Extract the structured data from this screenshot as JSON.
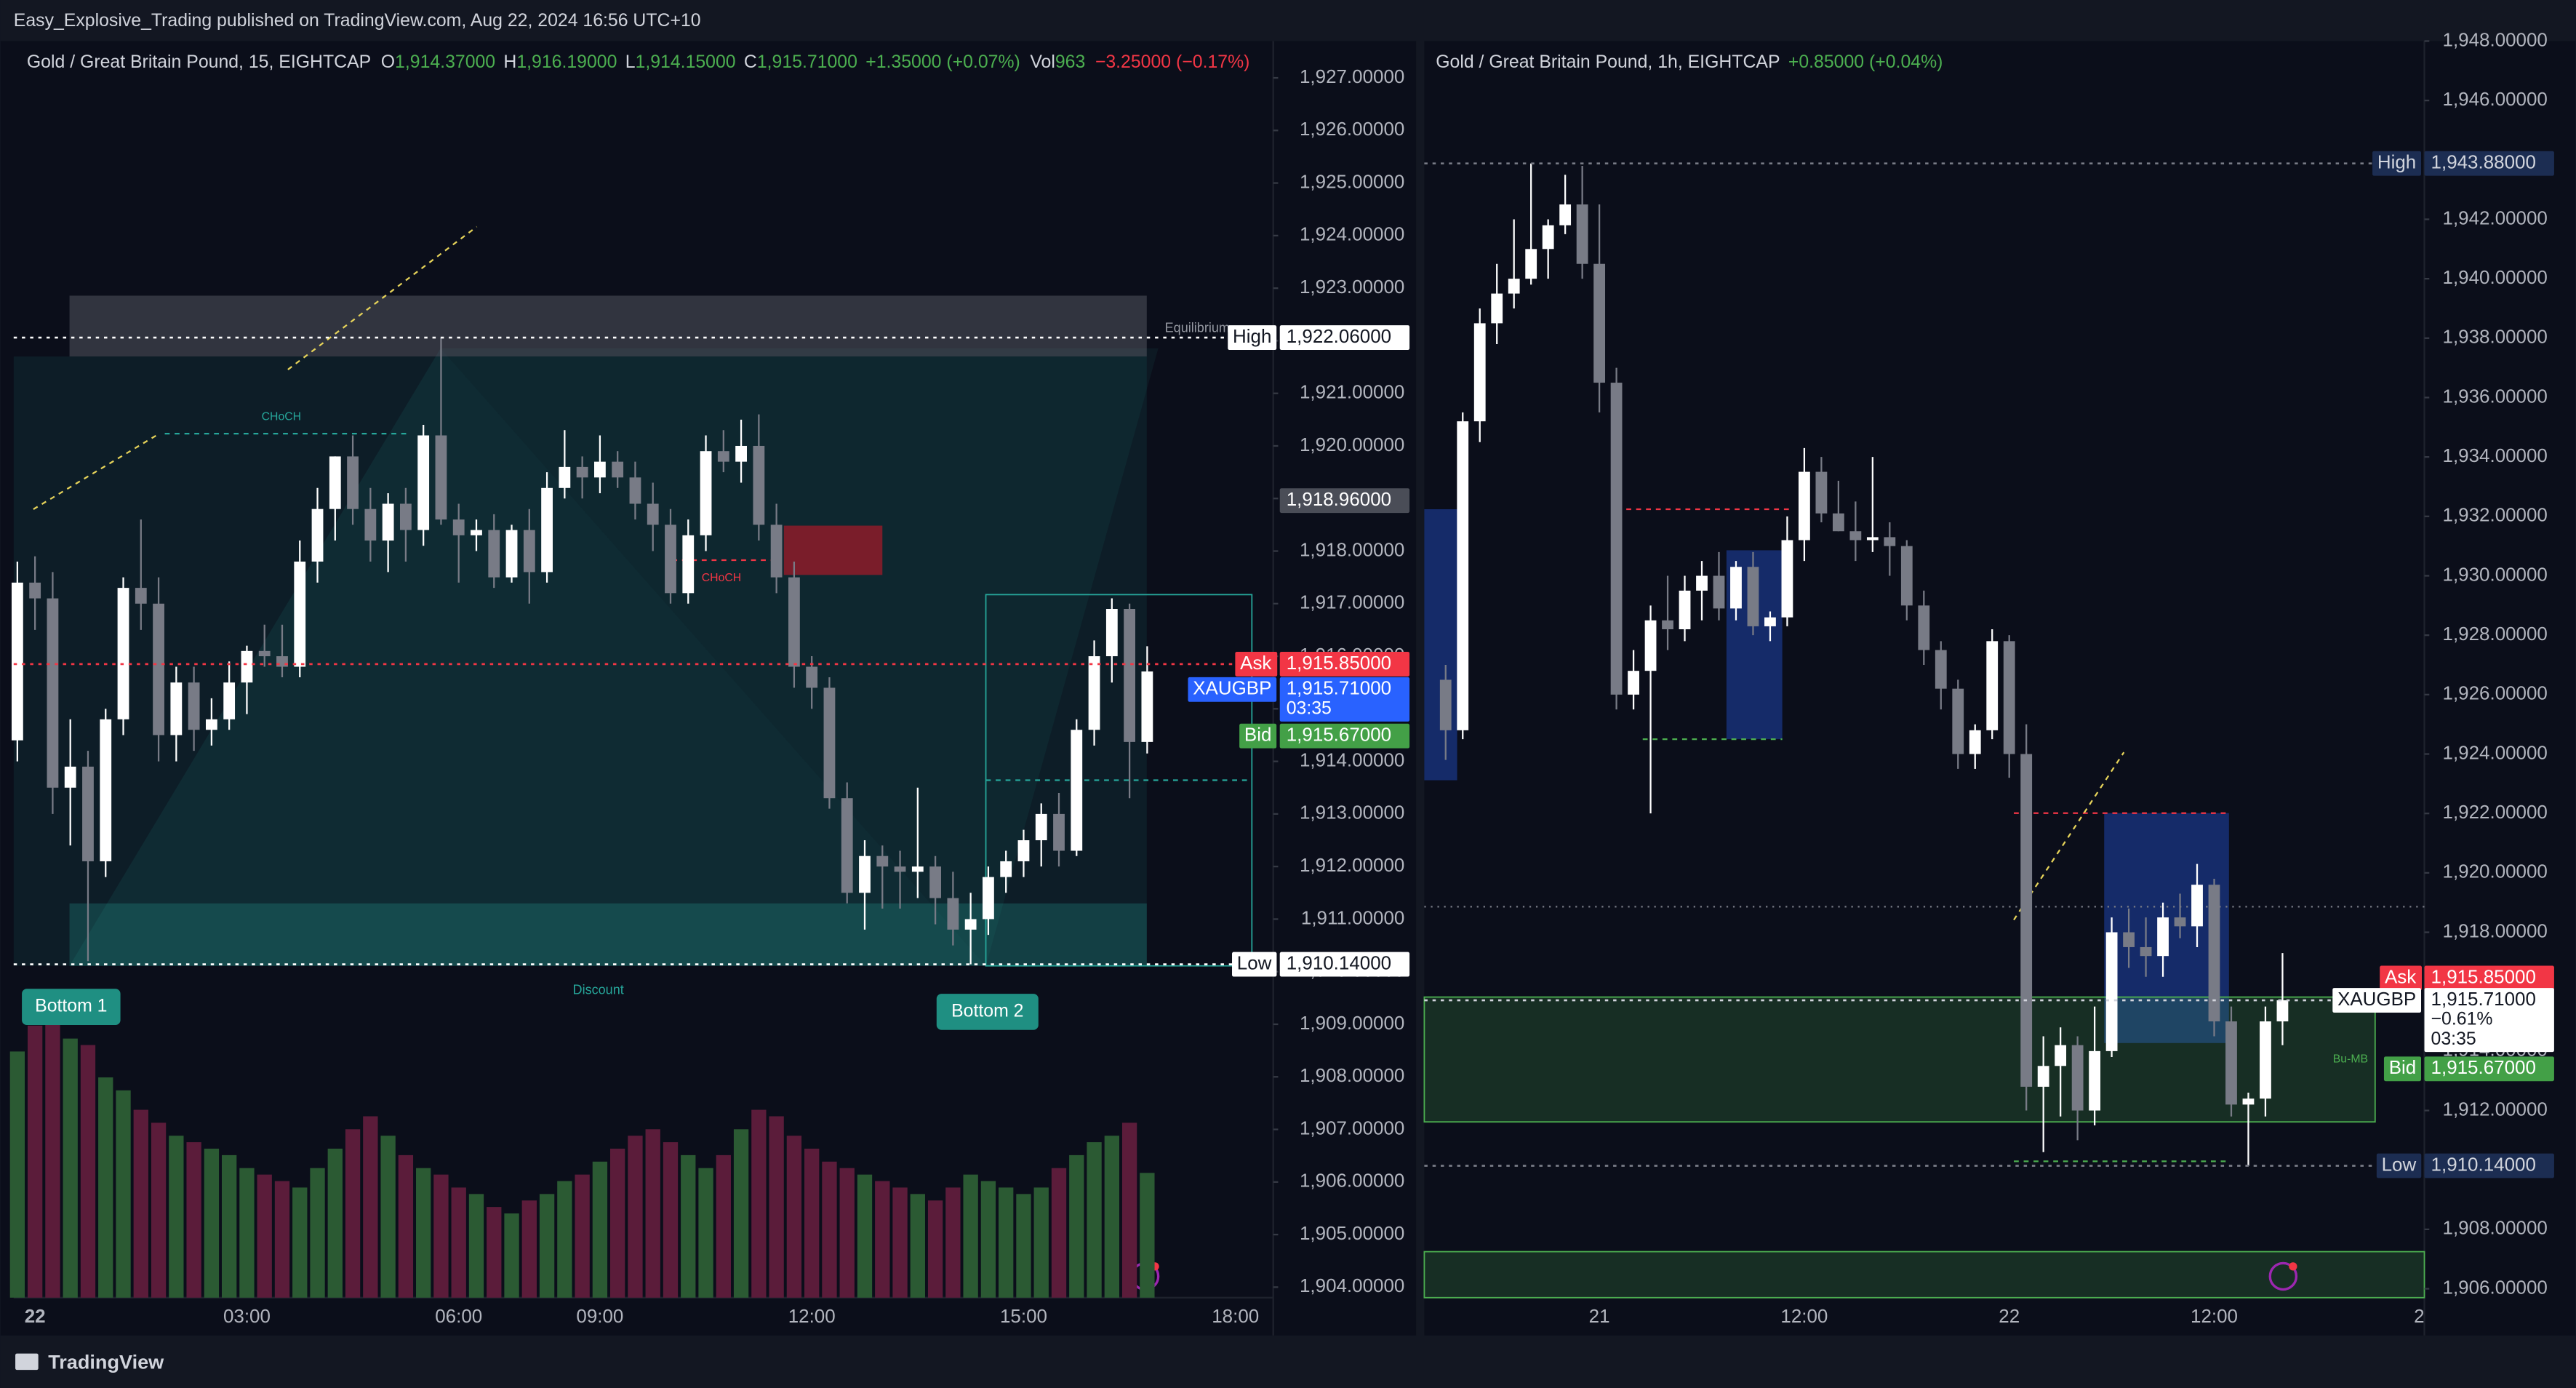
{
  "header": {
    "published": "Easy_Explosive_Trading published on TradingView.com, Aug 22, 2024 16:56 UTC+10"
  },
  "chart_data": [
    {
      "type": "candlestick",
      "legend": {
        "name": "Gold / Great Britain Pound, 15, EIGHTCAP",
        "items": [
          {
            "key": "O",
            "value": "1,914.37000"
          },
          {
            "key": "H",
            "value": "1,916.19000"
          },
          {
            "key": "L",
            "value": "1,914.15000"
          },
          {
            "key": "C",
            "value": "1,915.71000"
          }
        ],
        "change": "+1.35000 (+0.07%)",
        "volume_key": "Vol",
        "volume": "963",
        "volume_change": "−3.25000 (−0.17%)"
      },
      "categories": [
        null,
        "22",
        null,
        null,
        null,
        null,
        null,
        null,
        null,
        null,
        null,
        null,
        null,
        "03:00",
        null,
        null,
        null,
        null,
        null,
        null,
        null,
        null,
        null,
        null,
        null,
        "06:00",
        null,
        null,
        null,
        null,
        null,
        null,
        null,
        "09:00",
        null,
        null,
        null,
        null,
        null,
        null,
        null,
        null,
        null,
        null,
        null,
        "12:00",
        null,
        null,
        null,
        null,
        null,
        null,
        null,
        null,
        null,
        null,
        null,
        "15:00",
        null,
        null,
        null,
        null,
        null,
        null,
        null,
        null,
        null,
        null,
        null,
        "18:00"
      ],
      "open": [
        1914.4,
        1917.4,
        1917.1,
        1913.5,
        1913.9,
        1912.1,
        1914.8,
        1917.3,
        1917.0,
        1914.5,
        1915.5,
        1914.6,
        1914.8,
        1915.5,
        1916.1,
        1916.0,
        1915.8,
        1917.8,
        1918.8,
        1919.8,
        1918.8,
        1918.2,
        1918.9,
        1918.4,
        1920.2,
        1918.6,
        1918.3,
        1918.4,
        1917.5,
        1918.4,
        1917.6,
        1919.2,
        1919.6,
        1919.4,
        1919.7,
        1919.4,
        1918.9,
        1918.5,
        1917.2,
        1918.3,
        1919.9,
        1919.7,
        1920.0,
        1918.5,
        1917.5,
        1915.8,
        1915.4,
        1913.3,
        1911.5,
        1912.2,
        1912.0,
        1911.9,
        1912.0,
        1911.4,
        1910.8,
        1911.0,
        1911.8,
        1912.1,
        1912.5,
        1913.0,
        1912.3,
        1914.6,
        1916.0,
        1916.9,
        1914.37,
        null,
        null,
        null,
        null,
        null
      ],
      "high": [
        1917.8,
        1917.9,
        1917.6,
        1914.8,
        1914.2,
        1915.0,
        1917.5,
        1918.6,
        1917.5,
        1915.8,
        1915.8,
        1915.2,
        1915.9,
        1916.2,
        1916.6,
        1916.6,
        1918.2,
        1919.2,
        1919.8,
        1920.2,
        1919.2,
        1919.1,
        1919.2,
        1920.4,
        1922.06,
        1918.9,
        1918.6,
        1918.7,
        1918.5,
        1918.8,
        1919.5,
        1920.3,
        1919.8,
        1920.2,
        1919.9,
        1919.7,
        1919.3,
        1918.8,
        1918.6,
        1920.2,
        1920.3,
        1920.5,
        1920.6,
        1918.9,
        1917.8,
        1916.0,
        1915.6,
        1913.6,
        1912.5,
        1912.4,
        1912.3,
        1913.5,
        1912.2,
        1911.9,
        1911.5,
        1912.0,
        1912.3,
        1912.7,
        1913.2,
        1913.4,
        1914.8,
        1916.3,
        1917.1,
        1917.0,
        1916.19,
        null,
        null,
        null,
        null,
        null
      ],
      "low": [
        1914.0,
        1916.5,
        1913.0,
        1912.4,
        1910.2,
        1911.8,
        1914.5,
        1916.5,
        1914.0,
        1914.0,
        1914.2,
        1914.3,
        1914.6,
        1914.9,
        1915.8,
        1915.6,
        1915.6,
        1917.4,
        1918.2,
        1918.5,
        1917.8,
        1917.6,
        1917.8,
        1918.1,
        1918.5,
        1917.4,
        1918.0,
        1917.3,
        1917.4,
        1917.0,
        1917.4,
        1919.0,
        1919.0,
        1919.1,
        1919.2,
        1918.6,
        1918.0,
        1917.0,
        1917.0,
        1918.0,
        1919.5,
        1919.3,
        1918.2,
        1917.2,
        1915.4,
        1915.0,
        1913.1,
        1911.3,
        1910.8,
        1911.2,
        1911.2,
        1911.4,
        1910.9,
        1910.5,
        1910.14,
        1910.7,
        1911.5,
        1911.8,
        1912.0,
        1912.0,
        1912.2,
        1914.3,
        1915.5,
        1913.3,
        1914.15,
        null,
        null,
        null,
        null,
        null
      ],
      "close": [
        1917.4,
        1917.1,
        1913.5,
        1913.9,
        1912.1,
        1914.8,
        1917.3,
        1917.0,
        1914.5,
        1915.5,
        1914.6,
        1914.8,
        1915.5,
        1916.1,
        1916.0,
        1915.8,
        1917.8,
        1918.8,
        1919.8,
        1918.8,
        1918.2,
        1918.9,
        1918.4,
        1920.2,
        1918.6,
        1918.3,
        1918.4,
        1917.5,
        1918.4,
        1917.6,
        1919.2,
        1919.6,
        1919.4,
        1919.7,
        1919.4,
        1918.9,
        1918.5,
        1917.2,
        1918.3,
        1919.9,
        1919.7,
        1920.0,
        1918.5,
        1917.5,
        1915.8,
        1915.4,
        1913.3,
        1911.5,
        1912.2,
        1912.0,
        1911.9,
        1912.0,
        1911.4,
        1910.8,
        1911.0,
        1911.8,
        1912.1,
        1912.5,
        1913.0,
        1912.3,
        1914.6,
        1916.0,
        1916.9,
        1914.37,
        1915.71,
        null,
        null,
        null,
        null,
        null
      ],
      "volume": [
        1900,
        2100,
        2130,
        2000,
        1950,
        1700,
        1600,
        1450,
        1350,
        1250,
        1200,
        1150,
        1100,
        1000,
        950,
        900,
        850,
        1000,
        1150,
        1300,
        1400,
        1250,
        1100,
        1000,
        950,
        850,
        800,
        700,
        650,
        750,
        800,
        900,
        950,
        1050,
        1150,
        1250,
        1300,
        1200,
        1100,
        1000,
        1100,
        1300,
        1450,
        1400,
        1250,
        1150,
        1050,
        1000,
        950,
        900,
        850,
        800,
        750,
        850,
        950,
        900,
        850,
        800,
        850,
        1000,
        1100,
        1200,
        1250,
        1350,
        963,
        null,
        null,
        null,
        null,
        null
      ],
      "up_color": "#ffffff",
      "down_color": "#787b86",
      "volume_up_color": "#2b5a33",
      "volume_down_color": "#5b1c3a",
      "ylim": [
        1903.8,
        1927.7
      ],
      "yticks": [
        {
          "value": 1927,
          "label": "1,927.00000"
        },
        {
          "value": 1926,
          "label": "1,926.00000"
        },
        {
          "value": 1925,
          "label": "1,925.00000"
        },
        {
          "value": 1924,
          "label": "1,924.00000"
        },
        {
          "value": 1923,
          "label": "1,923.00000"
        },
        {
          "value": 1922,
          "label": "1,922.00000"
        },
        {
          "value": 1921,
          "label": "1,921.00000"
        },
        {
          "value": 1920,
          "label": "1,920.00000"
        },
        {
          "value": 1919,
          "label": "1,919.00000"
        },
        {
          "value": 1918,
          "label": "1,918.00000"
        },
        {
          "value": 1917,
          "label": "1,917.00000"
        },
        {
          "value": 1916,
          "label": "1,916.00000"
        },
        {
          "value": 1915,
          "label": "1,915.00000"
        },
        {
          "value": 1914,
          "label": "1,914.00000"
        },
        {
          "value": 1913,
          "label": "1,913.00000"
        },
        {
          "value": 1912,
          "label": "1,912.00000"
        },
        {
          "value": 1911,
          "label": "1,911.00000"
        },
        {
          "value": 1910,
          "label": "1,910.00000"
        },
        {
          "value": 1909,
          "label": "1,909.00000"
        },
        {
          "value": 1908,
          "label": "1,908.00000"
        },
        {
          "value": 1907,
          "label": "1,907.00000"
        },
        {
          "value": 1906,
          "label": "1,906.00000"
        },
        {
          "value": 1905,
          "label": "1,905.00000"
        },
        {
          "value": 1904,
          "label": "1,904.00000"
        }
      ],
      "price_labels": [
        {
          "tag": "High",
          "value": 1922.06,
          "label": "1,922.06000",
          "color": "#ffffff",
          "text_color": "#131722"
        },
        {
          "value": 1918.96,
          "label": "1,918.96000",
          "color": "#4a4d57",
          "text_color": "#ffffff"
        },
        {
          "tag": "Ask",
          "value": 1915.85,
          "label": "1,915.85000",
          "color": "#f23645",
          "text_color": "#ffffff"
        },
        {
          "tag": "XAUGBP",
          "value": 1915.71,
          "label": "1,915.71000",
          "extra": [
            "03:35"
          ],
          "color": "#2962ff",
          "text_color": "#ffffff"
        },
        {
          "tag": "Bid",
          "value": 1915.67,
          "label": "1,915.67000",
          "color": "#43a047",
          "text_color": "#ffffff"
        },
        {
          "tag": "Low",
          "value": 1910.14,
          "label": "1,910.14000",
          "color": "#ffffff",
          "text_color": "#131722"
        }
      ],
      "annotations": [
        "CHoCH",
        "CHoCH",
        "Equilibrium",
        "Discount",
        "Bottom 1",
        "Bottom 2"
      ]
    },
    {
      "type": "candlestick",
      "legend": {
        "name": "Gold / Great Britain Pound, 1h, EIGHTCAP",
        "change": "+0.85000 (+0.04%)"
      },
      "categories": [
        null,
        null,
        null,
        null,
        null,
        null,
        null,
        null,
        null,
        "21",
        null,
        null,
        null,
        null,
        null,
        null,
        null,
        null,
        null,
        null,
        null,
        "12:00",
        null,
        null,
        null,
        null,
        null,
        null,
        null,
        null,
        null,
        null,
        null,
        "22",
        null,
        null,
        null,
        null,
        null,
        null,
        null,
        null,
        null,
        null,
        null,
        "12:00",
        null,
        null,
        null,
        null,
        null,
        null,
        null,
        null,
        null,
        null,
        null,
        "2"
      ],
      "open": [
        1926.5,
        1924.8,
        1935.2,
        1938.5,
        1939.5,
        1940.0,
        1941.0,
        1941.8,
        1942.5,
        1940.5,
        1936.5,
        1926.0,
        1926.8,
        1928.5,
        1928.2,
        1929.5,
        1930.0,
        1928.9,
        1930.3,
        1928.3,
        1928.6,
        1931.2,
        1933.5,
        1932.1,
        1931.5,
        1931.2,
        1931.3,
        1931.0,
        1929.0,
        1927.5,
        1926.2,
        1924.0,
        1924.8,
        1927.8,
        1924.0,
        1912.8,
        1913.5,
        1914.2,
        1912.0,
        1914.0,
        1918.0,
        1917.5,
        1917.2,
        1918.5,
        1918.2,
        1919.6,
        1915.0,
        1912.2,
        1912.4,
        1915.0,
        null,
        null,
        null,
        null,
        null,
        null,
        null,
        null
      ],
      "high": [
        1927.0,
        1935.5,
        1939.0,
        1940.5,
        1942.0,
        1943.88,
        1942.0,
        1943.5,
        1943.8,
        1942.5,
        1937.0,
        1927.5,
        1929.0,
        1930.0,
        1930.0,
        1930.5,
        1930.8,
        1930.5,
        1930.8,
        1928.8,
        1932.0,
        1934.3,
        1934.0,
        1933.2,
        1932.5,
        1934.0,
        1931.8,
        1931.2,
        1929.5,
        1927.8,
        1926.5,
        1925.0,
        1928.2,
        1928.0,
        1925.0,
        1914.5,
        1914.8,
        1914.5,
        1915.5,
        1918.5,
        1918.8,
        1918.5,
        1919.0,
        1919.3,
        1920.3,
        1919.8,
        1915.5,
        1912.6,
        1915.5,
        1917.3,
        null,
        null,
        null,
        null,
        null,
        null,
        null,
        null
      ],
      "low": [
        1923.8,
        1924.5,
        1934.5,
        1937.8,
        1939.0,
        1939.8,
        1940.0,
        1941.5,
        1940.0,
        1935.5,
        1925.5,
        1925.5,
        1922.0,
        1927.5,
        1927.8,
        1928.5,
        1928.5,
        1928.5,
        1928.0,
        1927.8,
        1928.3,
        1930.5,
        1931.8,
        1931.5,
        1930.5,
        1930.8,
        1930.0,
        1928.5,
        1927.0,
        1925.5,
        1923.5,
        1923.5,
        1924.5,
        1923.2,
        1912.0,
        1910.6,
        1911.8,
        1911.0,
        1911.5,
        1913.8,
        1916.8,
        1916.5,
        1916.5,
        1917.8,
        1917.5,
        1914.5,
        1911.8,
        1910.14,
        1911.8,
        1914.2,
        null,
        null,
        null,
        null,
        null,
        null,
        null,
        null
      ],
      "close": [
        1924.8,
        1935.2,
        1938.5,
        1939.5,
        1940.0,
        1941.0,
        1941.8,
        1942.5,
        1940.5,
        1936.5,
        1926.0,
        1926.8,
        1928.5,
        1928.2,
        1929.5,
        1930.0,
        1928.9,
        1930.3,
        1928.3,
        1928.6,
        1931.2,
        1933.5,
        1932.1,
        1931.5,
        1931.2,
        1931.3,
        1931.0,
        1929.0,
        1927.5,
        1926.2,
        1924.0,
        1924.8,
        1927.8,
        1924.0,
        1912.8,
        1913.5,
        1914.2,
        1912.0,
        1914.0,
        1918.0,
        1917.5,
        1917.2,
        1918.5,
        1918.2,
        1919.6,
        1915.0,
        1912.2,
        1912.4,
        1915.0,
        1915.71,
        null,
        null,
        null,
        null,
        null,
        null,
        null,
        null
      ],
      "up_color": "#ffffff",
      "down_color": "#787b86",
      "ylim": [
        1905.7,
        1948.0
      ],
      "yticks": [
        {
          "value": 1948,
          "label": "1,948.00000"
        },
        {
          "value": 1946,
          "label": "1,946.00000"
        },
        {
          "value": 1944,
          "label": "1,944.00000"
        },
        {
          "value": 1942,
          "label": "1,942.00000"
        },
        {
          "value": 1940,
          "label": "1,940.00000"
        },
        {
          "value": 1938,
          "label": "1,938.00000"
        },
        {
          "value": 1936,
          "label": "1,936.00000"
        },
        {
          "value": 1934,
          "label": "1,934.00000"
        },
        {
          "value": 1932,
          "label": "1,932.00000"
        },
        {
          "value": 1930,
          "label": "1,930.00000"
        },
        {
          "value": 1928,
          "label": "1,928.00000"
        },
        {
          "value": 1926,
          "label": "1,926.00000"
        },
        {
          "value": 1924,
          "label": "1,924.00000"
        },
        {
          "value": 1922,
          "label": "1,922.00000"
        },
        {
          "value": 1920,
          "label": "1,920.00000"
        },
        {
          "value": 1918,
          "label": "1,918.00000"
        },
        {
          "value": 1916,
          "label": "1,916.00000"
        },
        {
          "value": 1914,
          "label": "1,914.00000"
        },
        {
          "value": 1912,
          "label": "1,912.00000"
        },
        {
          "value": 1910,
          "label": "1,910.00000"
        },
        {
          "value": 1908,
          "label": "1,908.00000"
        },
        {
          "value": 1906,
          "label": "1,906.00000"
        }
      ],
      "price_labels": [
        {
          "tag": "High",
          "value": 1943.88,
          "label": "1,943.88000",
          "color": "#1c2d52",
          "text_color": "#d1d4dc"
        },
        {
          "tag": "Ask",
          "value": 1915.85,
          "label": "1,915.85000",
          "color": "#f23645",
          "text_color": "#ffffff"
        },
        {
          "tag": "XAUGBP",
          "value": 1915.71,
          "label": "1,915.71000",
          "extra": [
            "−0.61%",
            "03:35"
          ],
          "color": "#ffffff",
          "text_color": "#131722"
        },
        {
          "tag": "Bid",
          "value": 1915.67,
          "label": "1,915.67000",
          "color": "#43a047",
          "text_color": "#ffffff"
        },
        {
          "tag": "Low",
          "value": 1910.14,
          "label": "1,910.14000",
          "color": "#1c2d52",
          "text_color": "#d1d4dc"
        }
      ],
      "annotations": [
        "Bu-MB"
      ]
    }
  ],
  "footer": {
    "brand": "TradingView"
  }
}
